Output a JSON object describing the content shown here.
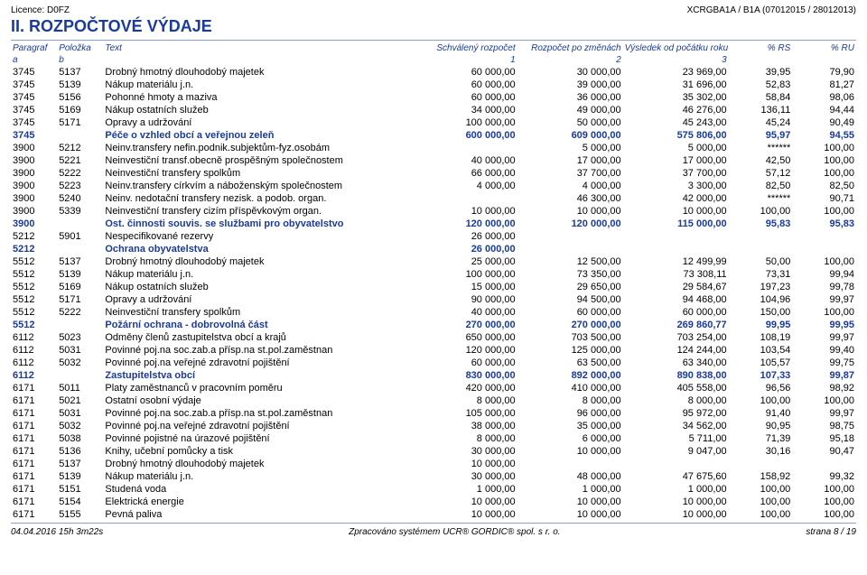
{
  "meta": {
    "licence": "Licence: D0FZ",
    "xcode": "XCRGBA1A / B1A (07012015 / 28012013)",
    "title": "II. ROZPOČTOVÉ VÝDAJE",
    "footer_left": "04.04.2016 15h 3m22s",
    "footer_center": "Zpracováno systémem UCR® GORDIC® spol. s r. o.",
    "footer_right": "strana 8 / 19"
  },
  "head": {
    "c0": "Paragraf",
    "c1": "Položka",
    "c2": "Text",
    "c3": "Schválený rozpočet",
    "c4": "Rozpočet po změnách",
    "c5": "Výsledek od počátku roku",
    "c6": "% RS",
    "c7": "% RU",
    "a": "a",
    "b": "b",
    "n1": "1",
    "n2": "2",
    "n3": "3"
  },
  "rows": [
    {
      "p": "3745",
      "k": "5137",
      "t": "Drobný hmotný dlouhodobý majetek",
      "v": [
        "60 000,00",
        "30 000,00",
        "23 969,00",
        "39,95",
        "79,90"
      ],
      "b": false
    },
    {
      "p": "3745",
      "k": "5139",
      "t": "Nákup materiálu j.n.",
      "v": [
        "60 000,00",
        "39 000,00",
        "31 696,00",
        "52,83",
        "81,27"
      ],
      "b": false
    },
    {
      "p": "3745",
      "k": "5156",
      "t": "Pohonné hmoty a maziva",
      "v": [
        "60 000,00",
        "36 000,00",
        "35 302,00",
        "58,84",
        "98,06"
      ],
      "b": false
    },
    {
      "p": "3745",
      "k": "5169",
      "t": "Nákup ostatních služeb",
      "v": [
        "34 000,00",
        "49 000,00",
        "46 276,00",
        "136,11",
        "94,44"
      ],
      "b": false
    },
    {
      "p": "3745",
      "k": "5171",
      "t": "Opravy a udržování",
      "v": [
        "100 000,00",
        "50 000,00",
        "45 243,00",
        "45,24",
        "90,49"
      ],
      "b": false
    },
    {
      "p": "3745",
      "k": "",
      "t": "Péče o vzhled obcí a veřejnou zeleň",
      "v": [
        "600 000,00",
        "609 000,00",
        "575 806,00",
        "95,97",
        "94,55"
      ],
      "b": true
    },
    {
      "p": "3900",
      "k": "5212",
      "t": "Neinv.transfery nefin.podnik.subjektům-fyz.osobám",
      "v": [
        "",
        "5 000,00",
        "5 000,00",
        "******",
        "100,00"
      ],
      "b": false
    },
    {
      "p": "3900",
      "k": "5221",
      "t": "Neinvestiční transf.obecně prospěšným společnostem",
      "v": [
        "40 000,00",
        "17 000,00",
        "17 000,00",
        "42,50",
        "100,00"
      ],
      "b": false
    },
    {
      "p": "3900",
      "k": "5222",
      "t": "Neinvestiční transfery spolkům",
      "v": [
        "66 000,00",
        "37 700,00",
        "37 700,00",
        "57,12",
        "100,00"
      ],
      "b": false
    },
    {
      "p": "3900",
      "k": "5223",
      "t": "Neinv.transfery církvím a náboženským společnostem",
      "v": [
        "4 000,00",
        "4 000,00",
        "3 300,00",
        "82,50",
        "82,50"
      ],
      "b": false
    },
    {
      "p": "3900",
      "k": "5240",
      "t": "Neinv. nedotační transfery nezisk. a podob. organ.",
      "v": [
        "",
        "46 300,00",
        "42 000,00",
        "******",
        "90,71"
      ],
      "b": false
    },
    {
      "p": "3900",
      "k": "5339",
      "t": "Neinvestiční transfery cizím příspěvkovým organ.",
      "v": [
        "10 000,00",
        "10 000,00",
        "10 000,00",
        "100,00",
        "100,00"
      ],
      "b": false
    },
    {
      "p": "3900",
      "k": "",
      "t": "Ost. činnosti souvis. se službami pro obyvatelstvo",
      "v": [
        "120 000,00",
        "120 000,00",
        "115 000,00",
        "95,83",
        "95,83"
      ],
      "b": true
    },
    {
      "p": "5212",
      "k": "5901",
      "t": "Nespecifikované rezervy",
      "v": [
        "26 000,00",
        "",
        "",
        "",
        ""
      ],
      "b": false
    },
    {
      "p": "5212",
      "k": "",
      "t": "Ochrana obyvatelstva",
      "v": [
        "26 000,00",
        "",
        "",
        "",
        ""
      ],
      "b": true
    },
    {
      "p": "5512",
      "k": "5137",
      "t": "Drobný hmotný dlouhodobý majetek",
      "v": [
        "25 000,00",
        "12 500,00",
        "12 499,99",
        "50,00",
        "100,00"
      ],
      "b": false
    },
    {
      "p": "5512",
      "k": "5139",
      "t": "Nákup materiálu j.n.",
      "v": [
        "100 000,00",
        "73 350,00",
        "73 308,11",
        "73,31",
        "99,94"
      ],
      "b": false
    },
    {
      "p": "5512",
      "k": "5169",
      "t": "Nákup ostatních služeb",
      "v": [
        "15 000,00",
        "29 650,00",
        "29 584,67",
        "197,23",
        "99,78"
      ],
      "b": false
    },
    {
      "p": "5512",
      "k": "5171",
      "t": "Opravy a udržování",
      "v": [
        "90 000,00",
        "94 500,00",
        "94 468,00",
        "104,96",
        "99,97"
      ],
      "b": false
    },
    {
      "p": "5512",
      "k": "5222",
      "t": "Neinvestiční transfery spolkům",
      "v": [
        "40 000,00",
        "60 000,00",
        "60 000,00",
        "150,00",
        "100,00"
      ],
      "b": false
    },
    {
      "p": "5512",
      "k": "",
      "t": "Požární ochrana - dobrovolná část",
      "v": [
        "270 000,00",
        "270 000,00",
        "269 860,77",
        "99,95",
        "99,95"
      ],
      "b": true
    },
    {
      "p": "6112",
      "k": "5023",
      "t": "Odměny členů zastupitelstva obcí a krajů",
      "v": [
        "650 000,00",
        "703 500,00",
        "703 254,00",
        "108,19",
        "99,97"
      ],
      "b": false
    },
    {
      "p": "6112",
      "k": "5031",
      "t": "Povinné poj.na soc.zab.a přísp.na st.pol.zaměstnan",
      "v": [
        "120 000,00",
        "125 000,00",
        "124 244,00",
        "103,54",
        "99,40"
      ],
      "b": false
    },
    {
      "p": "6112",
      "k": "5032",
      "t": "Povinné poj.na veřejné zdravotní pojištění",
      "v": [
        "60 000,00",
        "63 500,00",
        "63 340,00",
        "105,57",
        "99,75"
      ],
      "b": false
    },
    {
      "p": "6112",
      "k": "",
      "t": "Zastupitelstva obcí",
      "v": [
        "830 000,00",
        "892 000,00",
        "890 838,00",
        "107,33",
        "99,87"
      ],
      "b": true
    },
    {
      "p": "6171",
      "k": "5011",
      "t": "Platy zaměstnanců v pracovním poměru",
      "v": [
        "420 000,00",
        "410 000,00",
        "405 558,00",
        "96,56",
        "98,92"
      ],
      "b": false
    },
    {
      "p": "6171",
      "k": "5021",
      "t": "Ostatní osobní výdaje",
      "v": [
        "8 000,00",
        "8 000,00",
        "8 000,00",
        "100,00",
        "100,00"
      ],
      "b": false
    },
    {
      "p": "6171",
      "k": "5031",
      "t": "Povinné poj.na soc.zab.a přísp.na st.pol.zaměstnan",
      "v": [
        "105 000,00",
        "96 000,00",
        "95 972,00",
        "91,40",
        "99,97"
      ],
      "b": false
    },
    {
      "p": "6171",
      "k": "5032",
      "t": "Povinné poj.na veřejné zdravotní pojištění",
      "v": [
        "38 000,00",
        "35 000,00",
        "34 562,00",
        "90,95",
        "98,75"
      ],
      "b": false
    },
    {
      "p": "6171",
      "k": "5038",
      "t": "Povinné pojistné na úrazové pojištění",
      "v": [
        "8 000,00",
        "6 000,00",
        "5 711,00",
        "71,39",
        "95,18"
      ],
      "b": false
    },
    {
      "p": "6171",
      "k": "5136",
      "t": "Knihy, učební pomůcky a tisk",
      "v": [
        "30 000,00",
        "10 000,00",
        "9 047,00",
        "30,16",
        "90,47"
      ],
      "b": false
    },
    {
      "p": "6171",
      "k": "5137",
      "t": "Drobný hmotný dlouhodobý majetek",
      "v": [
        "10 000,00",
        "",
        "",
        "",
        ""
      ],
      "b": false
    },
    {
      "p": "6171",
      "k": "5139",
      "t": "Nákup materiálu j.n.",
      "v": [
        "30 000,00",
        "48 000,00",
        "47 675,60",
        "158,92",
        "99,32"
      ],
      "b": false
    },
    {
      "p": "6171",
      "k": "5151",
      "t": "Studená voda",
      "v": [
        "1 000,00",
        "1 000,00",
        "1 000,00",
        "100,00",
        "100,00"
      ],
      "b": false
    },
    {
      "p": "6171",
      "k": "5154",
      "t": "Elektrická energie",
      "v": [
        "10 000,00",
        "10 000,00",
        "10 000,00",
        "100,00",
        "100,00"
      ],
      "b": false
    },
    {
      "p": "6171",
      "k": "5155",
      "t": "Pevná paliva",
      "v": [
        "10 000,00",
        "10 000,00",
        "10 000,00",
        "100,00",
        "100,00"
      ],
      "b": false
    }
  ]
}
